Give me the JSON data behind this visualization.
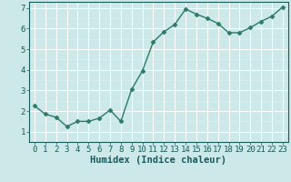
{
  "x": [
    0,
    1,
    2,
    3,
    4,
    5,
    6,
    7,
    8,
    9,
    10,
    11,
    12,
    13,
    14,
    15,
    16,
    17,
    18,
    19,
    20,
    21,
    22,
    23
  ],
  "y": [
    2.25,
    1.85,
    1.7,
    1.25,
    1.5,
    1.5,
    1.65,
    2.05,
    1.5,
    3.05,
    3.95,
    5.35,
    5.85,
    6.2,
    6.95,
    6.7,
    6.5,
    6.25,
    5.8,
    5.8,
    6.05,
    6.35,
    6.6,
    7.05
  ],
  "line_color": "#2d7a6b",
  "marker": "D",
  "marker_size": 2.5,
  "background_color": "#cce8e8",
  "grid_color": "#b8d8d8",
  "plot_bg_color": "#cce8e8",
  "grid_major_color": "#ffffff",
  "grid_minor_color": "#ddeaea",
  "xlabel": "Humidex (Indice chaleur)",
  "xlim": [
    -0.5,
    23.5
  ],
  "ylim": [
    0.5,
    7.3
  ],
  "yticks": [
    1,
    2,
    3,
    4,
    5,
    6,
    7
  ],
  "xticks": [
    0,
    1,
    2,
    3,
    4,
    5,
    6,
    7,
    8,
    9,
    10,
    11,
    12,
    13,
    14,
    15,
    16,
    17,
    18,
    19,
    20,
    21,
    22,
    23
  ],
  "xtick_labels": [
    "0",
    "1",
    "2",
    "3",
    "4",
    "5",
    "6",
    "7",
    "8",
    "9",
    "10",
    "11",
    "12",
    "13",
    "14",
    "15",
    "16",
    "17",
    "18",
    "19",
    "20",
    "21",
    "22",
    "23"
  ],
  "font_size": 6.5,
  "xlabel_fontsize": 7.5,
  "line_width": 1.0,
  "tick_color": "#1a5a5a",
  "spine_color": "#1a5a5a",
  "axis_bg": "#cce8e8"
}
